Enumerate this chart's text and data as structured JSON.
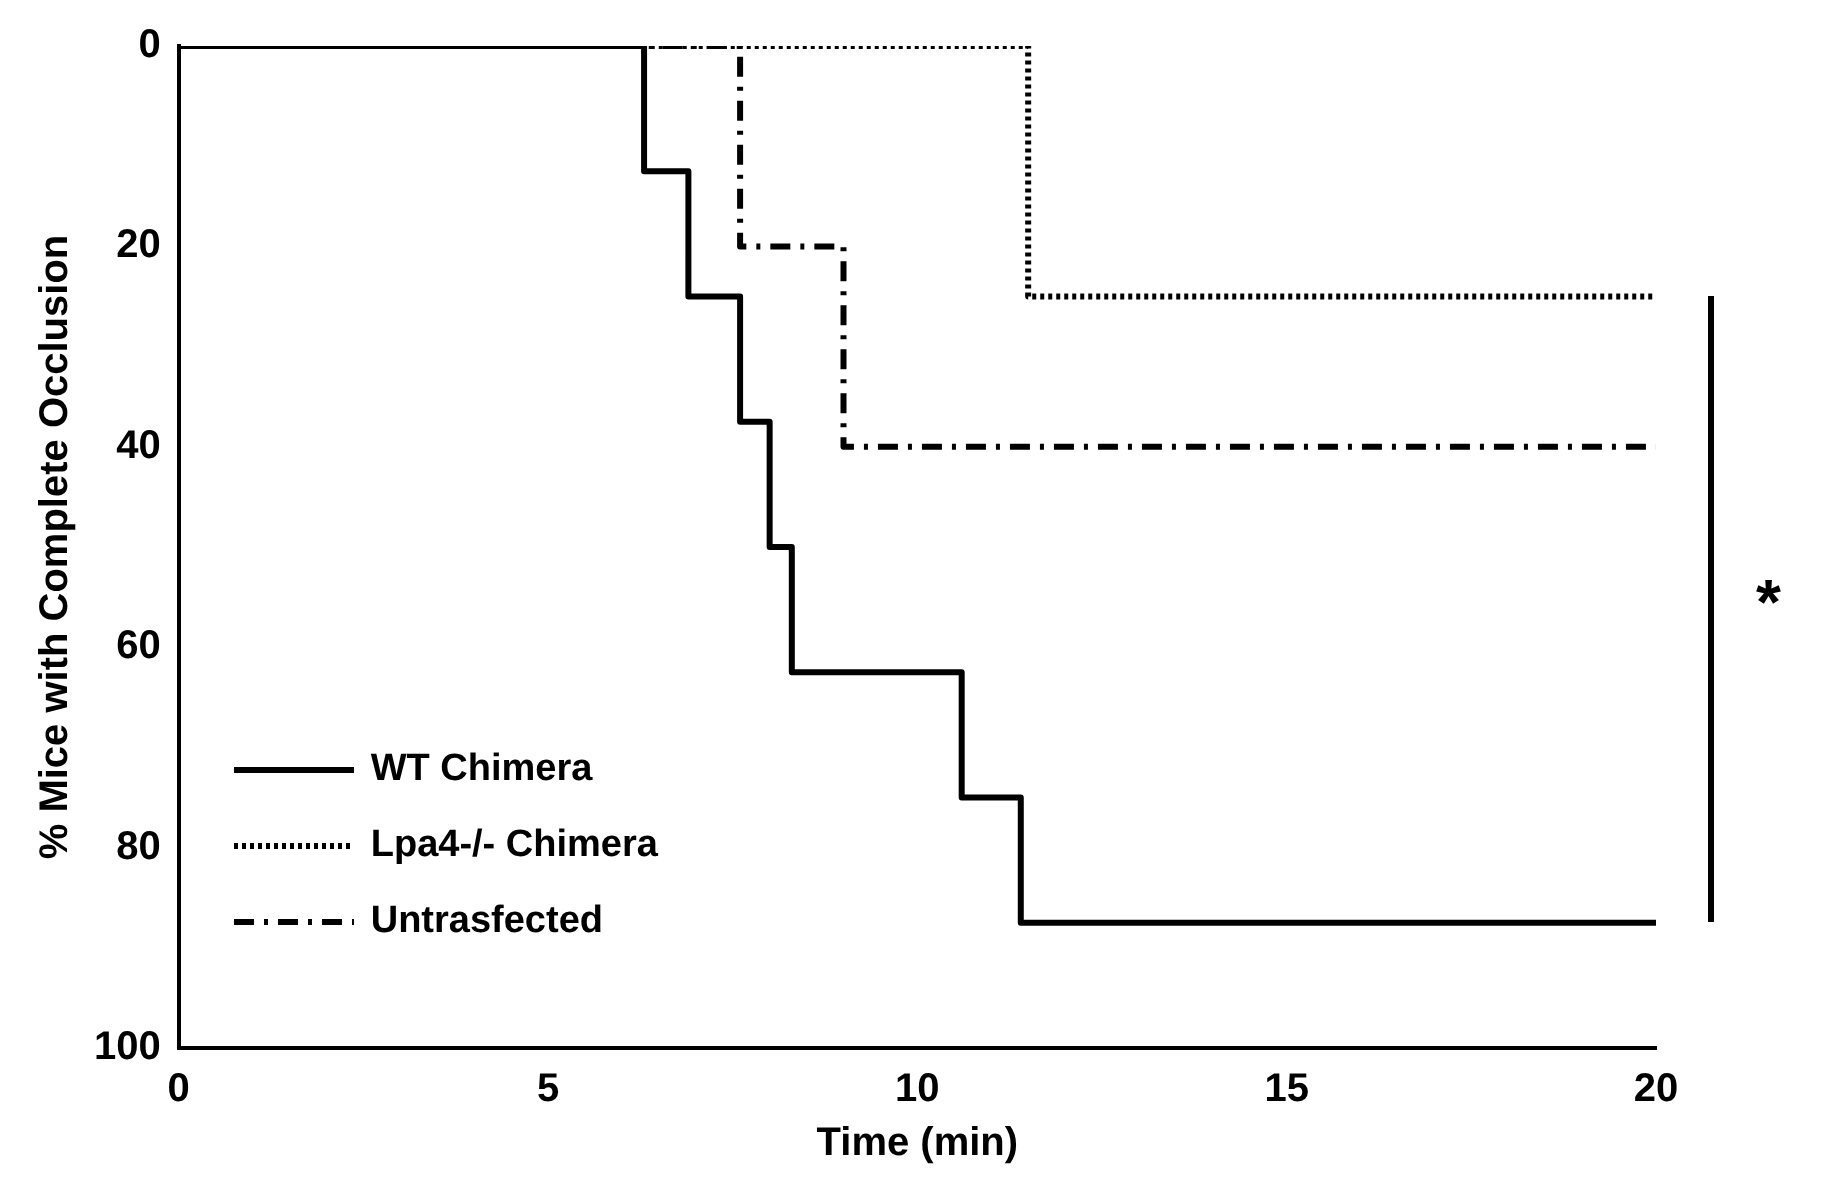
{
  "chart_data": {
    "type": "step",
    "xlabel": "Time (min)",
    "ylabel": "% Mice with Complete Occlusion",
    "xlim": [
      0,
      20
    ],
    "xticks": [
      0,
      5,
      10,
      15,
      20
    ],
    "ylim": [
      100,
      0
    ],
    "yticks": [
      0,
      20,
      40,
      60,
      80,
      100
    ],
    "grid": false,
    "legend": "bottom left",
    "marker": "none",
    "series": [
      {
        "name": "WT Chimera",
        "color": "#000000",
        "line_style": "solid",
        "x": [
          0,
          6.3,
          6.9,
          7.6,
          8.0,
          8.3,
          10.6,
          11.4,
          20
        ],
        "values": [
          0,
          12.5,
          25,
          37.5,
          50,
          62.5,
          75,
          87.5,
          87.5
        ]
      },
      {
        "name": "Lpa4-/- Chimera",
        "color": "#000000",
        "line_style": "dotted",
        "x": [
          0,
          11.5,
          20
        ],
        "values": [
          0,
          25,
          25
        ]
      },
      {
        "name": "Untrasfected",
        "color": "#000000",
        "line_style": "dashdot",
        "x": [
          0,
          7.6,
          9.0,
          20
        ],
        "values": [
          0,
          20,
          40,
          40
        ]
      }
    ],
    "annotations": [
      "*"
    ]
  }
}
